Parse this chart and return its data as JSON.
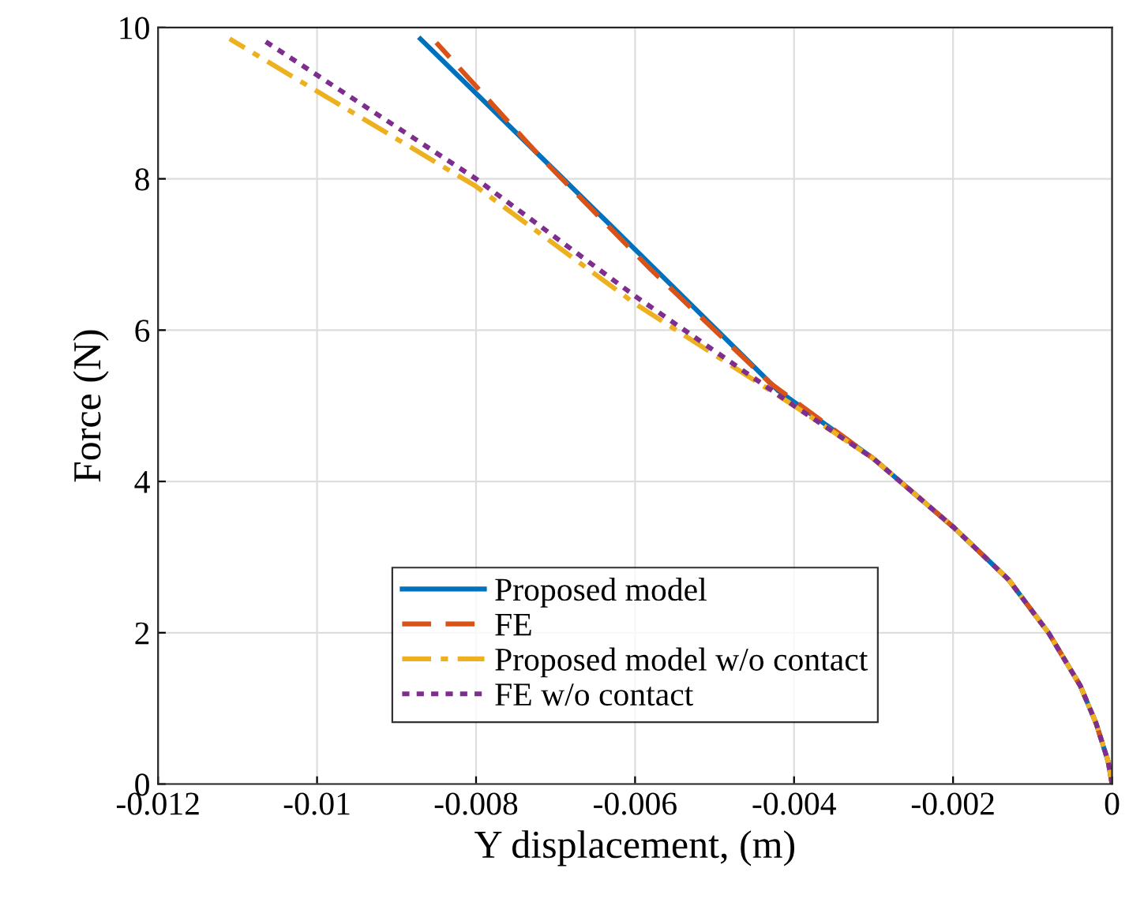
{
  "chart_data": {
    "type": "line",
    "xlabel": "Y displacement, (m)",
    "ylabel": "Force (N)",
    "xlim": [
      -0.012,
      0
    ],
    "ylim": [
      0,
      10
    ],
    "xticks": [
      -0.012,
      -0.01,
      -0.008,
      -0.006,
      -0.004,
      -0.002,
      0
    ],
    "yticks": [
      0,
      2,
      4,
      6,
      8,
      10
    ],
    "grid": true,
    "legend": "bottom",
    "series": [
      {
        "name": "Proposed model",
        "color": "#0072bd",
        "line_style": "solid",
        "x": [
          0,
          -5e-05,
          -0.0002,
          -0.0004,
          -0.0008,
          -0.0013,
          -0.002,
          -0.003,
          -0.0042,
          -0.0055,
          -0.007,
          -0.0087
        ],
        "values": [
          0,
          0.3,
          0.8,
          1.3,
          2.0,
          2.7,
          3.4,
          4.3,
          5.2,
          6.55,
          8.1,
          9.85
        ]
      },
      {
        "name": "FE",
        "color": "#d95319",
        "line_style": "dashed",
        "x": [
          0,
          -5e-05,
          -0.0002,
          -0.0004,
          -0.0008,
          -0.0013,
          -0.002,
          -0.003,
          -0.0043,
          -0.0058,
          -0.0072,
          -0.0085
        ],
        "values": [
          0,
          0.3,
          0.8,
          1.3,
          2.0,
          2.7,
          3.4,
          4.3,
          5.3,
          6.8,
          8.3,
          9.8
        ]
      },
      {
        "name": "Proposed model w/o contact",
        "color": "#edb120",
        "line_style": "dashdot",
        "x": [
          0,
          -5e-05,
          -0.0002,
          -0.0004,
          -0.0008,
          -0.0013,
          -0.002,
          -0.003,
          -0.004,
          -0.006,
          -0.008,
          -0.0111
        ],
        "values": [
          0,
          0.3,
          0.8,
          1.3,
          2.0,
          2.7,
          3.4,
          4.3,
          5.0,
          6.35,
          7.9,
          9.85
        ]
      },
      {
        "name": "FE w/o contact",
        "color": "#7e2f8e",
        "line_style": "dotted",
        "x": [
          0,
          -5e-05,
          -0.0002,
          -0.0004,
          -0.0008,
          -0.0013,
          -0.002,
          -0.003,
          -0.004,
          -0.006,
          -0.008,
          -0.0107
        ],
        "values": [
          0,
          0.3,
          0.8,
          1.3,
          2.0,
          2.7,
          3.4,
          4.3,
          5.0,
          6.45,
          8.0,
          9.85
        ]
      }
    ]
  }
}
